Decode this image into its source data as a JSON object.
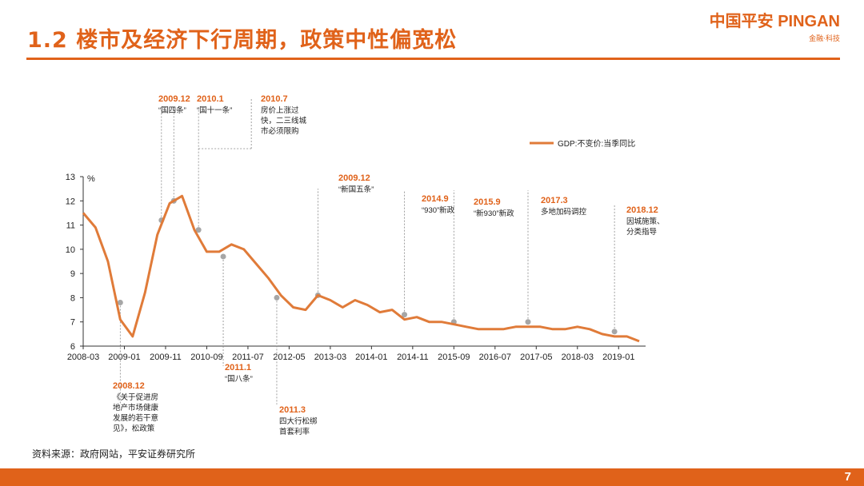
{
  "header": {
    "title": "1.2 楼市及经济下行周期，政策中性偏宽松"
  },
  "logo": {
    "main": "中国平安 PINGAN",
    "sub": "金融·科技"
  },
  "footer": {
    "source": "资料来源：政府网站，平安证券研究所",
    "page": "7"
  },
  "colors": {
    "accent": "#e0621a",
    "line": "#e07b39",
    "marker": "#a6a6a6"
  },
  "chart_data": {
    "type": "line",
    "title": "",
    "ylabel": "%",
    "ylim": [
      6,
      13
    ],
    "yticks": [
      6,
      7,
      8,
      9,
      10,
      11,
      12,
      13
    ],
    "x_tick_labels": [
      "2008-03",
      "2009-01",
      "2009-11",
      "2010-09",
      "2011-07",
      "2012-05",
      "2013-03",
      "2014-01",
      "2014-11",
      "2015-09",
      "2016-07",
      "2017-05",
      "2018-03",
      "2019-01"
    ],
    "legend": {
      "label": "GDP:不变价:当季同比",
      "position": "top-right"
    },
    "series": [
      {
        "name": "GDP:不变价:当季同比",
        "x": [
          "2008-03",
          "2008-06",
          "2008-09",
          "2008-12",
          "2009-03",
          "2009-06",
          "2009-09",
          "2009-12",
          "2010-03",
          "2010-06",
          "2010-09",
          "2010-12",
          "2011-03",
          "2011-06",
          "2011-09",
          "2011-12",
          "2012-03",
          "2012-06",
          "2012-09",
          "2012-12",
          "2013-03",
          "2013-06",
          "2013-09",
          "2013-12",
          "2014-03",
          "2014-06",
          "2014-09",
          "2014-12",
          "2015-03",
          "2015-06",
          "2015-09",
          "2015-12",
          "2016-03",
          "2016-06",
          "2016-09",
          "2016-12",
          "2017-03",
          "2017-06",
          "2017-09",
          "2017-12",
          "2018-03",
          "2018-06",
          "2018-09",
          "2018-12",
          "2019-03",
          "2019-06"
        ],
        "values": [
          11.5,
          10.9,
          9.5,
          7.1,
          6.4,
          8.2,
          10.6,
          11.9,
          12.2,
          10.8,
          9.9,
          9.9,
          10.2,
          10.0,
          9.4,
          8.8,
          8.1,
          7.6,
          7.5,
          8.1,
          7.9,
          7.6,
          7.9,
          7.7,
          7.4,
          7.5,
          7.1,
          7.2,
          7.0,
          7.0,
          6.9,
          6.8,
          6.7,
          6.7,
          6.7,
          6.8,
          6.8,
          6.8,
          6.7,
          6.7,
          6.8,
          6.7,
          6.5,
          6.4,
          6.4,
          6.2
        ]
      }
    ],
    "annotations": [
      {
        "x": "2008-12",
        "y": 7.8,
        "date": "2008.12",
        "lines": [
          "《关于促进房",
          "地产市场健康",
          "发展的若干意",
          "见》，松政策"
        ],
        "side": "below"
      },
      {
        "x": "2009-10",
        "y": 11.2,
        "date": "2009.12",
        "lines": [
          "“国四条”"
        ],
        "side": "above"
      },
      {
        "x": "2010-01",
        "y": 12.0,
        "date": "2010.1",
        "lines": [
          "“国十一条”"
        ],
        "side": "above"
      },
      {
        "x": "2010-07",
        "y": 10.8,
        "date": "2010.7",
        "lines": [
          "房价上涨过",
          "快，二三线城",
          "市必须限购"
        ],
        "side": "above"
      },
      {
        "x": "2011-01",
        "y": 9.7,
        "date": "2011.1",
        "lines": [
          "“国八条”"
        ],
        "side": "below"
      },
      {
        "x": "2012-02",
        "y": 8.0,
        "date": "2011.3",
        "lines": [
          "四大行松绑",
          "首套利率"
        ],
        "side": "below"
      },
      {
        "x": "2012-12",
        "y": 8.1,
        "date": "2009.12",
        "lines": [
          "“新国五条”"
        ],
        "side": "above"
      },
      {
        "x": "2014-09",
        "y": 7.3,
        "date": "2014.9",
        "lines": [
          "“930”新政"
        ],
        "side": "above"
      },
      {
        "x": "2015-09",
        "y": 7.0,
        "date": "2015.9",
        "lines": [
          "“新930”新政"
        ],
        "side": "above"
      },
      {
        "x": "2017-03",
        "y": 7.0,
        "date": "2017.3",
        "lines": [
          "多地加码调控"
        ],
        "side": "above"
      },
      {
        "x": "2018-12",
        "y": 6.6,
        "date": "2018.12",
        "lines": [
          "因城施策、",
          "分类指导"
        ],
        "side": "above"
      }
    ]
  }
}
